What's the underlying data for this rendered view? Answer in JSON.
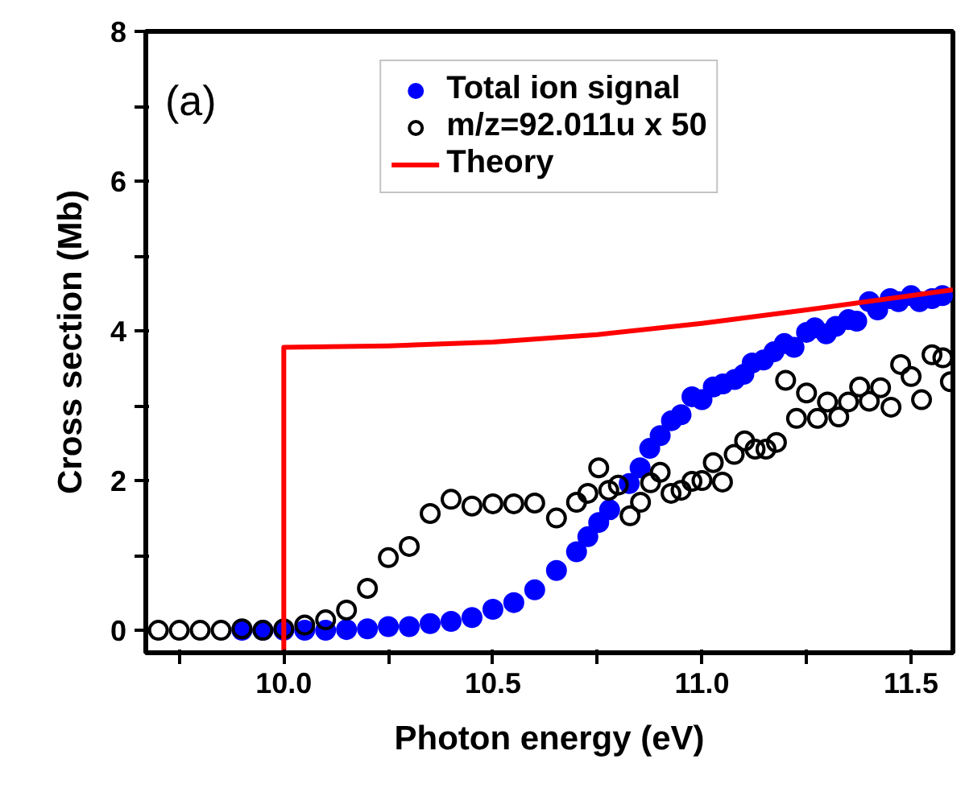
{
  "chart_data": {
    "type": "scatter",
    "xlabel": "Photon energy (eV)",
    "ylabel": "Cross section (Mb)",
    "annotations": [
      "(a)"
    ],
    "xlim": [
      9.67,
      11.6
    ],
    "ylim": [
      -0.3,
      8
    ],
    "xticks": [
      {
        "value": 9.75,
        "label": null
      },
      {
        "value": 10.0,
        "label": "10.0"
      },
      {
        "value": 10.25,
        "label": null
      },
      {
        "value": 10.5,
        "label": "10.5"
      },
      {
        "value": 10.75,
        "label": null
      },
      {
        "value": 11.0,
        "label": "11.0"
      },
      {
        "value": 11.25,
        "label": null
      },
      {
        "value": 11.5,
        "label": "11.5"
      }
    ],
    "yticks": [
      0,
      {
        "value": 1,
        "label": null
      },
      2,
      {
        "value": 3,
        "label": null
      },
      4,
      {
        "value": 5,
        "label": null
      },
      6,
      {
        "value": 7,
        "label": null
      },
      8
    ],
    "grid": false,
    "legend": "top",
    "series": [
      {
        "name": "Total ion signal",
        "marker": "circle",
        "color": "#0000ff",
        "x": [
          9.9,
          9.95,
          10.0,
          10.05,
          10.1,
          10.15,
          10.2,
          10.25,
          10.3,
          10.35,
          10.4,
          10.45,
          10.5,
          10.55,
          10.6,
          10.652,
          10.7,
          10.727,
          10.753,
          10.779,
          10.826,
          10.852,
          10.875,
          10.9,
          10.927,
          10.95,
          10.976,
          11.0,
          11.027,
          11.05,
          11.078,
          11.1,
          11.12,
          11.147,
          11.172,
          11.197,
          11.22,
          11.25,
          11.27,
          11.297,
          11.32,
          11.35,
          11.37,
          11.4,
          11.42,
          11.45,
          11.47,
          11.5,
          11.52,
          11.55,
          11.575
        ],
        "values": [
          0,
          0,
          0,
          0,
          0,
          0.01,
          0.02,
          0.05,
          0.05,
          0.09,
          0.12,
          0.17,
          0.28,
          0.37,
          0.54,
          0.8,
          1.05,
          1.25,
          1.44,
          1.61,
          1.96,
          2.17,
          2.43,
          2.6,
          2.8,
          2.88,
          3.12,
          3.08,
          3.25,
          3.29,
          3.35,
          3.42,
          3.57,
          3.61,
          3.72,
          3.83,
          3.78,
          3.98,
          4.04,
          3.96,
          4.06,
          4.15,
          4.13,
          4.39,
          4.28,
          4.43,
          4.39,
          4.47,
          4.39,
          4.43,
          4.47
        ]
      },
      {
        "name": "m/z=92.011u x 50",
        "marker": "circle open",
        "color": "#000000",
        "x": [
          9.7,
          9.75,
          9.8,
          9.85,
          9.9,
          9.95,
          10.0,
          10.05,
          10.1,
          10.15,
          10.2,
          10.25,
          10.3,
          10.35,
          10.4,
          10.45,
          10.5,
          10.55,
          10.6,
          10.652,
          10.7,
          10.727,
          10.753,
          10.777,
          10.8,
          10.828,
          10.853,
          10.877,
          10.9,
          10.926,
          10.95,
          10.976,
          11.0,
          11.027,
          11.049,
          11.077,
          11.102,
          11.127,
          11.153,
          11.178,
          11.2,
          11.226,
          11.25,
          11.276,
          11.3,
          11.327,
          11.35,
          11.377,
          11.4,
          11.427,
          11.452,
          11.475,
          11.5,
          11.525,
          11.55,
          11.576,
          11.594
        ],
        "values": [
          0,
          0,
          0,
          0,
          0.02,
          0,
          0.02,
          0.07,
          0.14,
          0.27,
          0.56,
          0.97,
          1.12,
          1.56,
          1.75,
          1.66,
          1.69,
          1.69,
          1.7,
          1.5,
          1.71,
          1.83,
          2.17,
          1.87,
          1.94,
          1.53,
          1.71,
          1.97,
          2.11,
          1.83,
          1.87,
          1.99,
          2.0,
          2.24,
          1.98,
          2.35,
          2.53,
          2.42,
          2.42,
          2.51,
          3.34,
          2.83,
          3.17,
          2.83,
          3.05,
          2.85,
          3.05,
          3.25,
          3.06,
          3.24,
          2.98,
          3.55,
          3.39,
          3.08,
          3.68,
          3.64,
          3.32
        ]
      },
      {
        "name": "Theory",
        "type": "line",
        "line_style": "solid",
        "color": "#ff0000",
        "x": [
          10.0,
          10.0,
          10.25,
          10.5,
          10.75,
          11.0,
          11.25,
          11.5,
          11.6
        ],
        "values": [
          -0.3,
          3.78,
          3.8,
          3.85,
          3.95,
          4.1,
          4.28,
          4.47,
          4.55
        ]
      }
    ]
  }
}
